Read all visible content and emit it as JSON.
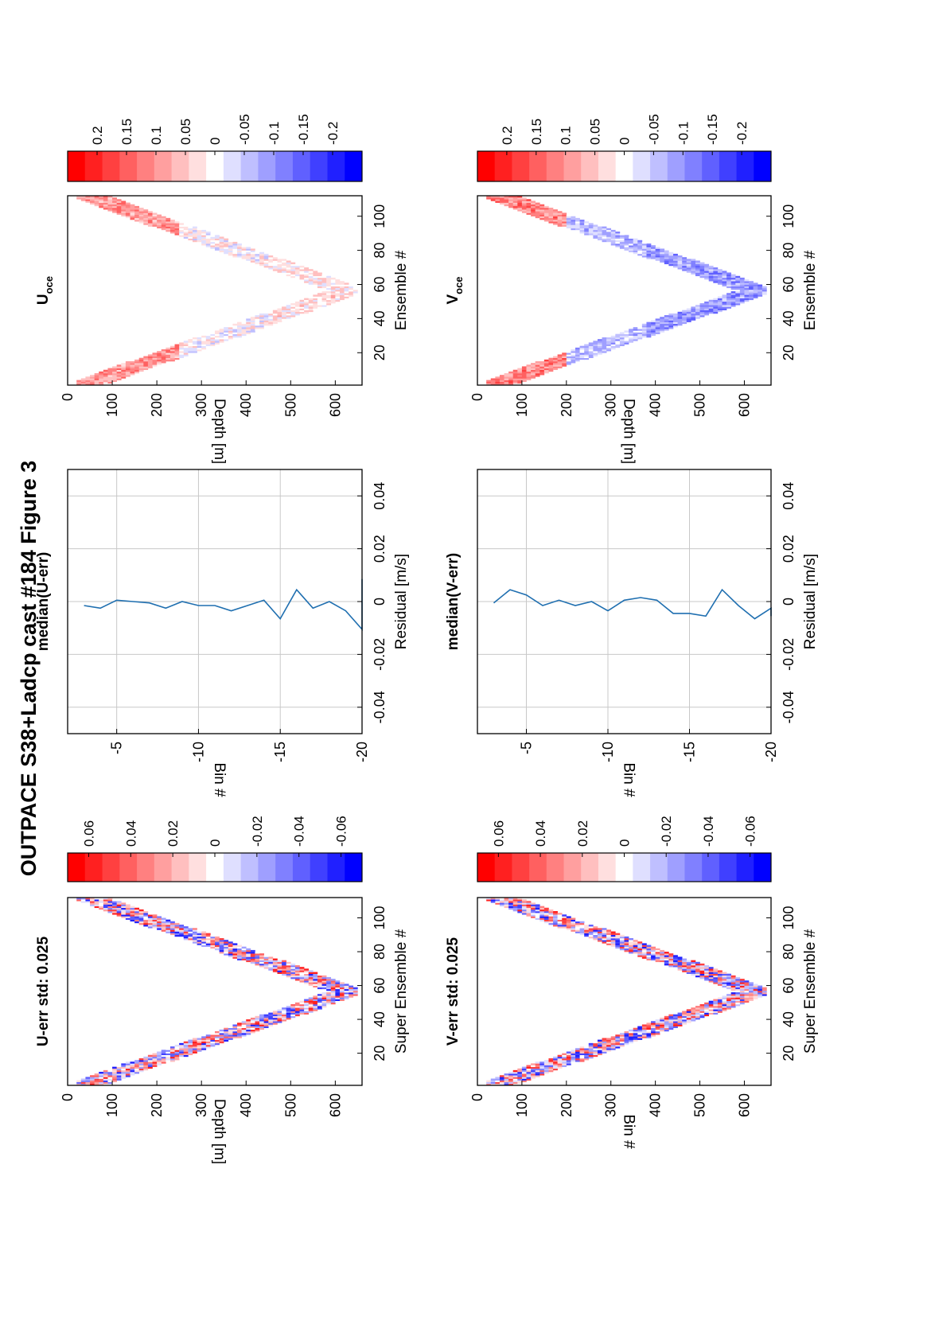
{
  "figure_title": "OUTPACE S38+Ladcp cast #184  Figure 3",
  "colors": {
    "line": "#1f6fb0",
    "red": "#ff0000",
    "blue": "#0000ff",
    "grid": "#c8c8c8"
  },
  "panels": {
    "u_err": {
      "title": "U-err std: 0.025",
      "ylabel": "Depth [m]",
      "xlabel": "Super Ensemble #"
    },
    "v_err": {
      "title": "V-err std: 0.025",
      "ylabel": "Bin #",
      "xlabel": "Super Ensemble #"
    },
    "u_res": {
      "title": "median(U-err)",
      "ylabel": "Bin #",
      "xlabel": "Residual [m/s]"
    },
    "v_res": {
      "title": "median(V-err)",
      "ylabel": "Bin #",
      "xlabel": "Residual [m/s]"
    },
    "u_oce": {
      "title": "U",
      "title_sub": "oce",
      "ylabel": "Depth [m]",
      "xlabel": "Ensemble #"
    },
    "v_oce": {
      "title": "V",
      "title_sub": "oce",
      "ylabel": "Depth [m]",
      "xlabel": "Ensemble #"
    }
  },
  "chart_data": [
    {
      "id": "u_err",
      "type": "heatmap",
      "title": "U-err std: 0.025",
      "xlabel": "Super Ensemble #",
      "ylabel": "Depth [m]",
      "xlim": [
        1,
        112
      ],
      "ylim": [
        0,
        660
      ],
      "xticks": [
        20,
        40,
        60,
        80,
        100
      ],
      "yticks": [
        0,
        100,
        200,
        300,
        400,
        500,
        600
      ],
      "profile": {
        "surface_depth": 40,
        "max_depth": 650,
        "turn_ensemble": 56,
        "thickness": 80
      },
      "colorbar": {
        "range": [
          -0.07,
          0.07
        ],
        "ticks": [
          0.06,
          0.04,
          0.02,
          0,
          -0.02,
          -0.04,
          -0.06
        ]
      }
    },
    {
      "id": "v_err",
      "type": "heatmap",
      "title": "V-err std: 0.025",
      "xlabel": "Super Ensemble #",
      "ylabel": "Bin #",
      "xlim": [
        1,
        112
      ],
      "ylim": [
        0,
        660
      ],
      "xticks": [
        20,
        40,
        60,
        80,
        100
      ],
      "yticks": [
        0,
        100,
        200,
        300,
        400,
        500,
        600
      ],
      "profile": {
        "surface_depth": 40,
        "max_depth": 650,
        "turn_ensemble": 56,
        "thickness": 80
      },
      "colorbar": {
        "range": [
          -0.07,
          0.07
        ],
        "ticks": [
          0.06,
          0.04,
          0.02,
          0,
          -0.02,
          -0.04,
          -0.06
        ]
      }
    },
    {
      "id": "u_res",
      "type": "line",
      "title": "median(U-err)",
      "xlabel": "Residual [m/s]",
      "ylabel": "Bin #",
      "xlim": [
        -0.05,
        0.05
      ],
      "ylim": [
        -20,
        -2
      ],
      "xticks": [
        -0.04,
        -0.02,
        0,
        0.02,
        0.04
      ],
      "yticks": [
        -5,
        -10,
        -15,
        -20
      ],
      "grid": true,
      "series": [
        {
          "x": [
            -0.0015,
            -0.0025,
            0.0005,
            0.0,
            -0.0005,
            -0.0025,
            0.0,
            -0.0015,
            -0.0015,
            -0.0035,
            -0.0015,
            0.0005,
            -0.0065,
            0.0045,
            -0.0025,
            0.0,
            -0.0035,
            -0.0105,
            0.0085
          ],
          "y": [
            -3,
            -4,
            -5,
            -6,
            -7,
            -8,
            -9,
            -10,
            -11,
            -12,
            -13,
            -14,
            -15,
            -16,
            -17,
            -18,
            -19,
            -20,
            -21
          ]
        }
      ]
    },
    {
      "id": "v_res",
      "type": "line",
      "title": "median(V-err)",
      "xlabel": "Residual [m/s]",
      "ylabel": "Bin #",
      "xlim": [
        -0.05,
        0.05
      ],
      "ylim": [
        -20,
        -2
      ],
      "xticks": [
        -0.04,
        -0.02,
        0,
        0.02,
        0.04
      ],
      "yticks": [
        -5,
        -10,
        -15,
        -20
      ],
      "grid": true,
      "series": [
        {
          "x": [
            -0.0005,
            0.0045,
            0.0025,
            -0.0015,
            0.0005,
            -0.0015,
            0.0,
            -0.0035,
            0.0005,
            0.0015,
            0.0005,
            -0.0045,
            -0.0045,
            -0.0055,
            0.0045,
            -0.0015,
            -0.0065,
            -0.0025,
            -0.0055
          ],
          "y": [
            -3,
            -4,
            -5,
            -6,
            -7,
            -8,
            -9,
            -10,
            -11,
            -12,
            -13,
            -14,
            -15,
            -16,
            -17,
            -18,
            -19,
            -20,
            -21
          ]
        }
      ]
    },
    {
      "id": "u_oce",
      "type": "heatmap",
      "title": "U oce",
      "xlabel": "Ensemble #",
      "ylabel": "Depth [m]",
      "xlim": [
        1,
        112
      ],
      "ylim": [
        0,
        660
      ],
      "xticks": [
        20,
        40,
        60,
        80,
        100
      ],
      "yticks": [
        0,
        100,
        200,
        300,
        400,
        500,
        600
      ],
      "profile": {
        "surface_depth": 40,
        "max_depth": 650,
        "turn_ensemble": 56,
        "thickness": 80
      },
      "colorbar": {
        "range": [
          -0.25,
          0.25
        ],
        "ticks": [
          0.2,
          0.15,
          0.1,
          0.05,
          0,
          -0.05,
          -0.1,
          -0.15,
          -0.2
        ]
      }
    },
    {
      "id": "v_oce",
      "type": "heatmap",
      "title": "V oce",
      "xlabel": "Ensemble #",
      "ylabel": "Depth [m]",
      "xlim": [
        1,
        112
      ],
      "ylim": [
        0,
        660
      ],
      "xticks": [
        20,
        40,
        60,
        80,
        100
      ],
      "yticks": [
        0,
        100,
        200,
        300,
        400,
        500,
        600
      ],
      "profile": {
        "surface_depth": 40,
        "max_depth": 650,
        "turn_ensemble": 56,
        "thickness": 80
      },
      "colorbar": {
        "range": [
          -0.25,
          0.25
        ],
        "ticks": [
          0.2,
          0.15,
          0.1,
          0.05,
          0,
          -0.05,
          -0.1,
          -0.15,
          -0.2
        ]
      }
    }
  ]
}
